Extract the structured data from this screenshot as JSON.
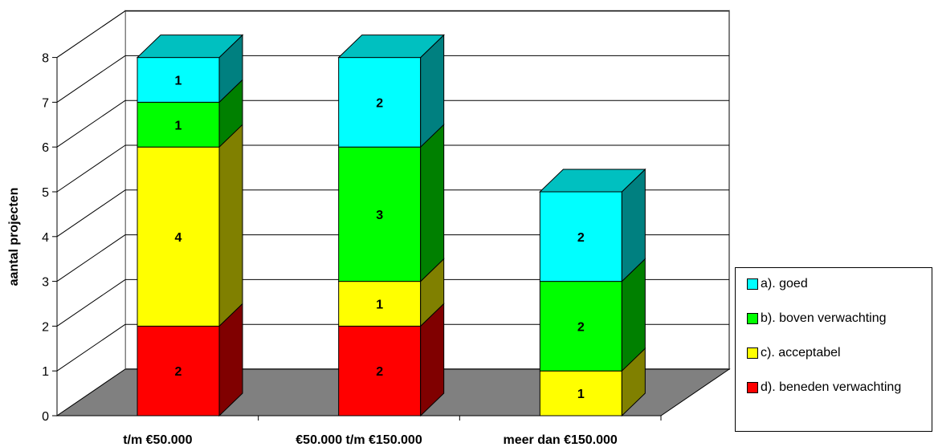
{
  "chart_data": {
    "type": "bar",
    "stacked": true,
    "three_d": true,
    "categories": [
      "t/m €50.000",
      "€50.000 t/m €150.000",
      "meer dan €150.000"
    ],
    "series": [
      {
        "name": "d). beneden verwachting",
        "values": [
          2,
          2,
          0
        ],
        "color": "#ff0000",
        "side": "#800000"
      },
      {
        "name": "c). acceptabel",
        "values": [
          4,
          1,
          1
        ],
        "color": "#ffff00",
        "side": "#808000"
      },
      {
        "name": "b). boven verwachting",
        "values": [
          1,
          3,
          2
        ],
        "color": "#00ff00",
        "side": "#008000"
      },
      {
        "name": "a). goed",
        "values": [
          1,
          2,
          2
        ],
        "color": "#00ffff",
        "side": "#008080"
      }
    ],
    "title": "",
    "xlabel": "",
    "ylabel": "aantal projecten",
    "ylim": [
      0,
      8
    ],
    "yticks": [
      "0",
      "1",
      "2",
      "3",
      "4",
      "5",
      "6",
      "7",
      "8"
    ],
    "grid": true,
    "legend_position": "right",
    "legend_order": [
      "a). goed",
      "b). boven verwachting",
      "c). acceptabel",
      "d). beneden verwachting"
    ]
  }
}
